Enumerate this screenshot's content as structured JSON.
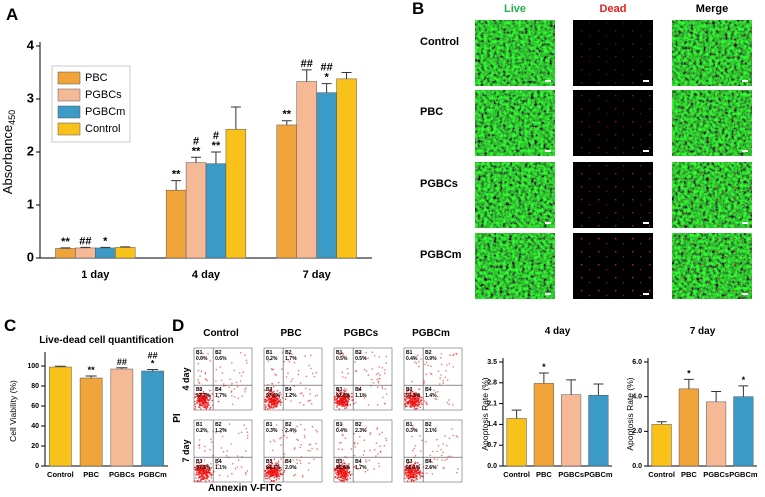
{
  "panels": [
    "A",
    "B",
    "C",
    "D"
  ],
  "chart_data": [
    {
      "type": "bar",
      "y_label": "Absorbance",
      "y_label_sub": "450",
      "categories": [
        "1 day",
        "4 day",
        "7 day"
      ],
      "ylim": [
        0,
        4
      ],
      "yticks": [
        0,
        1,
        2,
        3,
        4
      ],
      "legend": "upper left",
      "series": [
        {
          "name": "PBC",
          "color": "#f0a43a",
          "values": [
            0.18,
            1.28,
            2.51
          ],
          "errors": [
            0.01,
            0.18,
            0.08
          ],
          "annotations": [
            [
              "**"
            ],
            [
              "**"
            ],
            [
              "**"
            ]
          ]
        },
        {
          "name": "PGBCs",
          "color": "#f6b995",
          "values": [
            0.19,
            1.8,
            3.33
          ],
          "errors": [
            0.01,
            0.1,
            0.22
          ],
          "annotations": [
            [
              "##"
            ],
            [
              "#",
              "**"
            ],
            [
              "##"
            ]
          ]
        },
        {
          "name": "PGBCm",
          "color": "#3b9ac6",
          "values": [
            0.19,
            1.78,
            3.12
          ],
          "errors": [
            0.01,
            0.22,
            0.17
          ],
          "annotations": [
            [
              "*"
            ],
            [
              "#",
              "**"
            ],
            [
              "##",
              "*"
            ]
          ]
        },
        {
          "name": "Control",
          "color": "#f8c21a",
          "values": [
            0.2,
            2.43,
            3.38
          ],
          "errors": [
            0.01,
            0.42,
            0.12
          ]
        }
      ]
    },
    {
      "type": "bar",
      "title": "Live-dead cell quantification",
      "y_label": "Cell Viability (%)",
      "categories": [
        "Control",
        "PBC",
        "PGBCs",
        "PGBCm"
      ],
      "colors": [
        "#f8c21a",
        "#f0a43a",
        "#f6b995",
        "#3b9ac6"
      ],
      "values": [
        99,
        88,
        97,
        95
      ],
      "errors": [
        0.8,
        2,
        1.2,
        1.5
      ],
      "annotations": [
        null,
        [
          "**"
        ],
        [
          "##"
        ],
        [
          "##",
          "*"
        ]
      ],
      "ylim": [
        0,
        110
      ],
      "yticks": [
        0,
        20,
        40,
        60,
        80,
        100
      ]
    },
    {
      "type": "bar",
      "title": "4 day",
      "y_label": "Apoptosis Rate (%)",
      "categories": [
        "Control",
        "PBC",
        "PGBCs",
        "PGBCm"
      ],
      "colors": [
        "#f8c21a",
        "#f0a43a",
        "#f6b995",
        "#3b9ac6"
      ],
      "values": [
        1.6,
        2.78,
        2.4,
        2.38
      ],
      "errors": [
        0.28,
        0.35,
        0.5,
        0.38
      ],
      "annotations": [
        null,
        [
          "*"
        ],
        null,
        null
      ],
      "ylim": [
        0,
        3.5
      ],
      "yticks": [
        {
          "value": 0,
          "label": "0.0"
        },
        0.7,
        1.4,
        2.1,
        2.8,
        3.5
      ]
    },
    {
      "type": "bar",
      "title": "7 day",
      "y_label": "Apoptosis Rate (%)",
      "categories": [
        "Control",
        "PBC",
        "PGBCs",
        "PGBCm"
      ],
      "colors": [
        "#f8c21a",
        "#f0a43a",
        "#f6b995",
        "#3b9ac6"
      ],
      "values": [
        2.4,
        4.45,
        3.7,
        4.0
      ],
      "errors": [
        0.15,
        0.55,
        0.6,
        0.62
      ],
      "annotations": [
        null,
        [
          "*"
        ],
        null,
        [
          "*"
        ]
      ],
      "ylim": [
        0,
        6
      ],
      "yticks": [
        {
          "value": 0,
          "label": "0.0"
        },
        {
          "value": 2,
          "label": "2.0"
        },
        {
          "value": 4,
          "label": "4.0"
        },
        {
          "value": 6,
          "label": "6.0"
        }
      ]
    }
  ],
  "microscopy": {
    "columns": [
      "Live",
      "Dead",
      "Merge"
    ],
    "rows": [
      "Control",
      "PBC",
      "PGBCs",
      "PGBCm"
    ]
  },
  "flow": {
    "columns": [
      "Control",
      "PBC",
      "PGBCs",
      "PGBCm"
    ],
    "y_label": "PI",
    "x_label": "Annexin V-FITC",
    "quadrants": [
      "B1",
      "B2",
      "B3",
      "B4"
    ],
    "rows": [
      {
        "label": "4 day",
        "plots": [
          [
            "0.0%",
            "0.6%",
            "97.7%",
            "1.7%"
          ],
          [
            "0.2%",
            "1.7%",
            "97.0%",
            "1.2%"
          ],
          [
            "0.5%",
            "0.5%",
            "97.9%",
            "1.1%"
          ],
          [
            "0.4%",
            "0.9%",
            "97.3%",
            "1.4%"
          ]
        ]
      },
      {
        "label": "7 day",
        "plots": [
          [
            "0.2%",
            "1.2%",
            "97.5%",
            "1.1%"
          ],
          [
            "0.3%",
            "2.4%",
            "94.7%",
            "2.0%"
          ],
          [
            "0.4%",
            "2.3%",
            "95.6%",
            "1.7%"
          ],
          [
            "0.3%",
            "2.1%",
            "95.1%",
            "2.6%"
          ]
        ]
      }
    ]
  }
}
